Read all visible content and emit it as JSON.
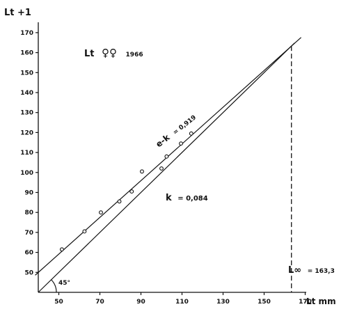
{
  "chart_data": {
    "type": "scatter",
    "title": "",
    "xlabel": "Lt mm",
    "ylabel": "Lt +1",
    "xlim": [
      40,
      170
    ],
    "ylim": [
      40,
      175
    ],
    "x_ticks": [
      50,
      70,
      90,
      110,
      130,
      150,
      170
    ],
    "y_ticks": [
      50,
      60,
      70,
      80,
      90,
      100,
      110,
      120,
      130,
      140,
      150,
      160,
      170
    ],
    "x_tick_labels": [
      "50",
      "70",
      "90",
      "110",
      "130",
      "150",
      "170"
    ],
    "y_tick_labels": [
      "50",
      "60",
      "70",
      "80",
      "90",
      "100",
      "110",
      "120",
      "130",
      "140",
      "150",
      "160",
      "170"
    ],
    "points": [
      {
        "x": 51.5,
        "y": 61.5
      },
      {
        "x": 62.5,
        "y": 70.5
      },
      {
        "x": 70.5,
        "y": 80.0
      },
      {
        "x": 79.5,
        "y": 85.5
      },
      {
        "x": 85.5,
        "y": 90.5
      },
      {
        "x": 90.5,
        "y": 100.5
      },
      {
        "x": 100.0,
        "y": 102.0
      },
      {
        "x": 102.5,
        "y": 108.0
      },
      {
        "x": 109.5,
        "y": 114.5
      },
      {
        "x": 114.5,
        "y": 119.5
      }
    ],
    "lines": [
      {
        "type": "regression",
        "label": "e-k = 0,919",
        "slope": 0.919,
        "intercept": 13.2
      },
      {
        "type": "bisector-45",
        "label": "45°",
        "slope": 1.0,
        "intercept": 0
      }
    ],
    "l_infinity": 163.3,
    "annotations": {
      "series_label": "Lt",
      "symbol": "♀♀",
      "year": "1966",
      "ek_prefix": "e-k",
      "ek_suffix": "= 0,919",
      "k_prefix": "k",
      "k_suffix": "= 0,084",
      "angle_label": "45°",
      "linf_prefix": "L∞",
      "linf_suffix": "= 163,3"
    },
    "grid": false
  }
}
